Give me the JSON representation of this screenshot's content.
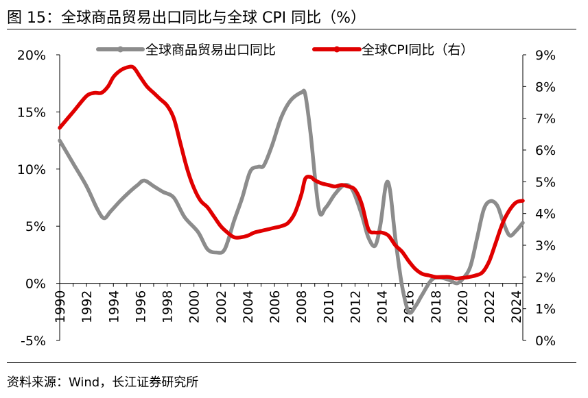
{
  "header": {
    "title": "图 15：全球商品贸易出口同比与全球 CPI 同比（%）"
  },
  "footer": {
    "source": "资料来源：Wind，长江证券研究所"
  },
  "colors": {
    "trade": "#8c8c8c",
    "cpi": "#e00000",
    "axis": "#000000"
  },
  "chart_data": {
    "type": "line",
    "title": "全球商品贸易出口同比与全球 CPI 同比（%）",
    "x_tick_labels": [
      "1990",
      "1992",
      "1994",
      "1996",
      "1998",
      "2000",
      "2002",
      "2004",
      "2006",
      "2008",
      "2010",
      "2012",
      "2014",
      "2016",
      "2018",
      "2020",
      "2022",
      "2024"
    ],
    "xlim": [
      1990,
      2024.5
    ],
    "left_axis": {
      "ylim": [
        -5,
        20
      ],
      "ticks": [
        -5,
        0,
        5,
        10,
        15,
        20
      ],
      "tick_labels": [
        "-5%",
        "0%",
        "5%",
        "10%",
        "15%",
        "20%"
      ]
    },
    "right_axis": {
      "ylim": [
        0,
        9
      ],
      "ticks": [
        0,
        1,
        2,
        3,
        4,
        5,
        6,
        7,
        8,
        9
      ],
      "tick_labels": [
        "0%",
        "1%",
        "2%",
        "3%",
        "4%",
        "5%",
        "6%",
        "7%",
        "8%",
        "9%"
      ]
    },
    "legend": [
      "全球商品贸易出口同比",
      "全球CPI同比（右）"
    ],
    "legend_position": "top",
    "series": [
      {
        "name": "全球商品贸易出口同比",
        "axis": "left",
        "x": [
          1990,
          1991,
          1992,
          1992.8,
          1993.3,
          1993.8,
          1994.5,
          1995.2,
          1995.8,
          1996.3,
          1997,
          1997.7,
          1998.5,
          1999.3,
          2000.3,
          2001,
          2001.7,
          2002.3,
          2003,
          2003.6,
          2004.2,
          2004.8,
          2005.2,
          2005.8,
          2006.5,
          2007.2,
          2008,
          2008.3,
          2008.7,
          2009.3,
          2009.8,
          2010.5,
          2011.2,
          2011.8,
          2012.5,
          2013,
          2013.5,
          2013.9,
          2014.3,
          2014.6,
          2015,
          2015.5,
          2016,
          2016.5,
          2017,
          2017.7,
          2018.3,
          2019,
          2019.6,
          2020.1,
          2020.6,
          2021.1,
          2021.6,
          2022.1,
          2022.6,
          2023,
          2023.5,
          2024,
          2024.5
        ],
        "values": [
          12.5,
          10.5,
          8.5,
          6.5,
          5.7,
          6.3,
          7.2,
          8.0,
          8.6,
          9.0,
          8.5,
          8.0,
          7.5,
          5.8,
          4.5,
          3.0,
          2.7,
          3.0,
          5.5,
          7.5,
          9.8,
          10.2,
          10.3,
          12.0,
          14.5,
          16.0,
          16.7,
          16.5,
          13.0,
          6.5,
          6.6,
          7.8,
          8.6,
          8.2,
          6.0,
          4.0,
          3.3,
          5.2,
          8.6,
          8.2,
          4.0,
          -0.2,
          -2.5,
          -2.0,
          -1.0,
          0.3,
          0.5,
          0.3,
          0.0,
          0.5,
          1.5,
          4.0,
          6.5,
          7.2,
          6.8,
          5.5,
          4.2,
          4.6,
          5.3
        ]
      },
      {
        "name": "全球CPI同比（右）",
        "axis": "right",
        "x": [
          1990,
          1991,
          1992,
          1992.6,
          1993.1,
          1993.6,
          1994,
          1994.5,
          1995,
          1995.5,
          1996,
          1996.5,
          1997,
          1997.5,
          1998,
          1998.5,
          1999,
          1999.5,
          2000,
          2000.5,
          2001,
          2001.5,
          2002,
          2002.5,
          2003,
          2003.5,
          2004,
          2004.5,
          2005,
          2005.5,
          2006,
          2006.5,
          2007,
          2007.5,
          2008,
          2008.3,
          2008.7,
          2009,
          2009.5,
          2010,
          2010.5,
          2011,
          2011.5,
          2012,
          2012.5,
          2013,
          2013.5,
          2014,
          2014.5,
          2015,
          2015.5,
          2016,
          2016.5,
          2017,
          2017.5,
          2018,
          2018.5,
          2019,
          2019.5,
          2020,
          2020.5,
          2021,
          2021.5,
          2022,
          2022.5,
          2023,
          2023.5,
          2024,
          2024.5
        ],
        "values": [
          6.7,
          7.2,
          7.7,
          7.8,
          7.8,
          8.0,
          8.3,
          8.5,
          8.6,
          8.6,
          8.3,
          8.0,
          7.8,
          7.6,
          7.4,
          7.0,
          6.2,
          5.4,
          4.8,
          4.4,
          4.2,
          3.9,
          3.6,
          3.4,
          3.25,
          3.25,
          3.3,
          3.4,
          3.45,
          3.5,
          3.55,
          3.6,
          3.7,
          4.0,
          4.6,
          5.1,
          5.15,
          5.05,
          4.95,
          4.9,
          4.85,
          4.9,
          4.85,
          4.75,
          4.3,
          3.5,
          3.4,
          3.4,
          3.3,
          3.0,
          2.8,
          2.5,
          2.25,
          2.1,
          2.05,
          2.0,
          2.0,
          2.0,
          1.95,
          1.97,
          2.0,
          2.05,
          2.15,
          2.5,
          3.1,
          3.7,
          4.1,
          4.35,
          4.4
        ]
      }
    ]
  }
}
